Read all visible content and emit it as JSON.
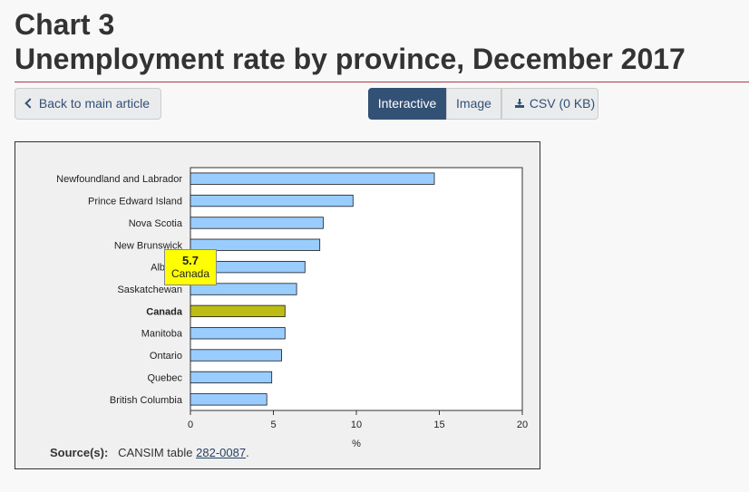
{
  "header": {
    "title_line1": "Chart 3",
    "title_line2": "Unemployment rate by province, December 2017"
  },
  "toolbar": {
    "back_label": "Back to main article",
    "tab_interactive": "Interactive",
    "tab_image": "Image",
    "tab_csv": "CSV (0 KB)"
  },
  "colors": {
    "bar": "#99ccff",
    "highlight_bar": "#bcbc14",
    "tooltip": "#ffff00"
  },
  "chart_data": {
    "type": "bar",
    "orientation": "horizontal",
    "categories": [
      "Newfoundland and Labrador",
      "Prince Edward Island",
      "Nova Scotia",
      "New Brunswick",
      "Alberta",
      "Saskatchewan",
      "Canada",
      "Manitoba",
      "Ontario",
      "Quebec",
      "British Columbia"
    ],
    "values": [
      14.7,
      9.8,
      8.0,
      7.8,
      6.9,
      6.4,
      5.7,
      5.7,
      5.5,
      4.9,
      4.6
    ],
    "highlight": "Canada",
    "xlabel": "%",
    "xlim": [
      0,
      20
    ],
    "xticks": [
      0,
      5,
      10,
      15,
      20
    ],
    "grid": false,
    "title": ""
  },
  "tooltip": {
    "value": "5.7",
    "category": "Canada"
  },
  "source": {
    "label": "Source(s):",
    "text": "CANSIM table",
    "link": "282-0087",
    "suffix": "."
  }
}
